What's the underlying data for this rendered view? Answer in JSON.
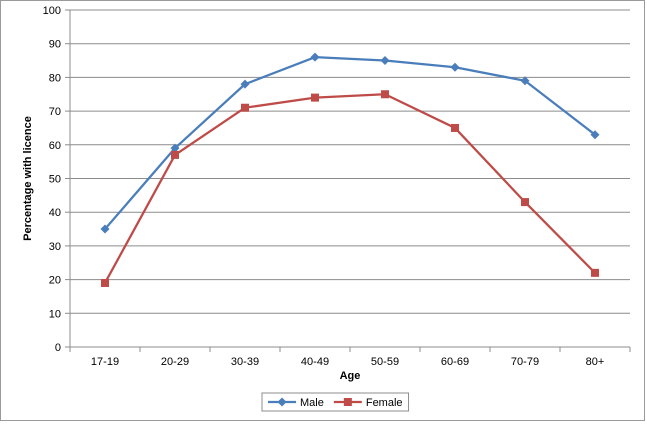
{
  "chart_data": {
    "type": "line",
    "title": "",
    "xlabel": "Age",
    "ylabel": "Percentage with licence",
    "categories": [
      "17-19",
      "20-29",
      "30-39",
      "40-49",
      "50-59",
      "60-69",
      "70-79",
      "80+"
    ],
    "ylim": [
      0,
      100
    ],
    "yticks": [
      0,
      10,
      20,
      30,
      40,
      50,
      60,
      70,
      80,
      90,
      100
    ],
    "grid": true,
    "legend_position": "bottom",
    "series": [
      {
        "name": "Male",
        "color": "#4a7ebb",
        "marker": "diamond",
        "values": [
          35,
          59,
          78,
          86,
          85,
          83,
          79,
          63
        ]
      },
      {
        "name": "Female",
        "color": "#be4b48",
        "marker": "square",
        "values": [
          19,
          57,
          71,
          74,
          75,
          65,
          43,
          22
        ]
      }
    ]
  }
}
